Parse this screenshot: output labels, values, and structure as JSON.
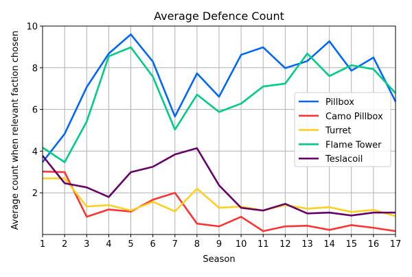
{
  "chart_data": {
    "type": "line",
    "title": "Average Defence Count",
    "xlabel": "Season",
    "ylabel": "Average count when relevant faction chosen",
    "x": [
      1,
      2,
      3,
      4,
      5,
      6,
      7,
      8,
      9,
      10,
      11,
      12,
      13,
      14,
      15,
      16,
      17
    ],
    "xlim": [
      1,
      17
    ],
    "ylim": [
      0,
      10
    ],
    "yticks": [
      2,
      4,
      6,
      8,
      10
    ],
    "grid": true,
    "legend_position": "center-right",
    "series": [
      {
        "name": "Pillbox",
        "color": "#0066ff",
        "values": [
          3.47,
          4.83,
          7.07,
          8.68,
          9.6,
          8.29,
          5.66,
          7.73,
          6.61,
          8.62,
          8.98,
          7.98,
          8.32,
          9.27,
          7.86,
          8.49,
          6.38
        ]
      },
      {
        "name": "Camo Pillbox",
        "color": "#ff3333",
        "values": [
          3.02,
          2.99,
          0.85,
          1.2,
          1.1,
          1.67,
          2.0,
          0.52,
          0.39,
          0.85,
          0.16,
          0.39,
          0.42,
          0.22,
          0.45,
          0.32,
          0.16
        ]
      },
      {
        "name": "Turret",
        "color": "#ffd020",
        "values": [
          2.69,
          2.69,
          1.34,
          1.41,
          1.15,
          1.57,
          1.11,
          2.2,
          1.28,
          1.34,
          1.15,
          1.41,
          1.24,
          1.31,
          1.08,
          1.18,
          0.88
        ]
      },
      {
        "name": "Flame Tower",
        "color": "#00cc88",
        "values": [
          4.17,
          3.47,
          5.42,
          8.55,
          8.98,
          7.57,
          5.03,
          6.71,
          5.88,
          6.28,
          7.1,
          7.24,
          8.68,
          7.6,
          8.12,
          7.93,
          6.78
        ]
      },
      {
        "name": "Teslacoil",
        "color": "#660066",
        "values": [
          3.78,
          2.46,
          2.26,
          1.8,
          2.99,
          3.25,
          3.84,
          4.14,
          2.36,
          1.28,
          1.15,
          1.47,
          1.01,
          1.05,
          0.91,
          1.05,
          1.05
        ]
      }
    ]
  }
}
